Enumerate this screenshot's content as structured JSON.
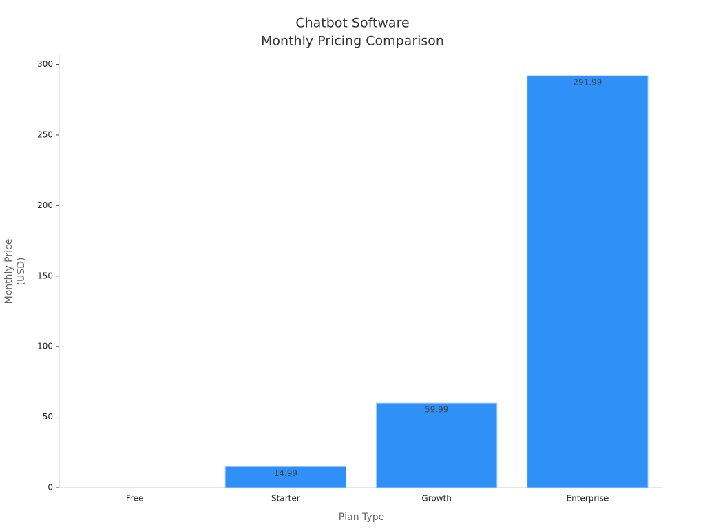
{
  "chart_data": {
    "type": "bar",
    "title": [
      "Chatbot Software",
      "Monthly Pricing Comparison"
    ],
    "x_label": "Plan Type",
    "y_label": [
      "Monthly Price",
      "(USD)"
    ],
    "categories": [
      "Free",
      "Starter",
      "Growth",
      "Enterprise"
    ],
    "values": [
      0,
      14.99,
      59.99,
      291.99
    ],
    "value_labels": [
      null,
      "14.99",
      "59.99",
      "291.99"
    ],
    "color": "#2f91f7",
    "ylim": [
      0,
      306.6
    ],
    "yticks": [
      0,
      50,
      100,
      150,
      200,
      250,
      300
    ],
    "grid": false
  }
}
